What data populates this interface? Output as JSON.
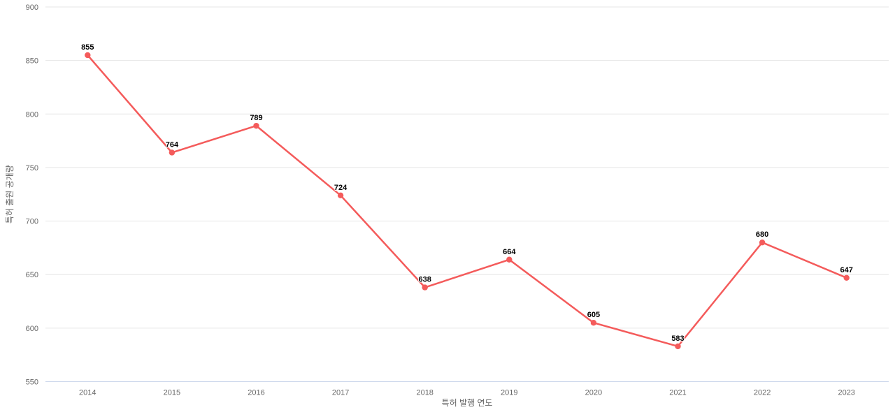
{
  "chart_data": {
    "type": "line",
    "title": "",
    "categories": [
      "2014",
      "2015",
      "2016",
      "2017",
      "2018",
      "2019",
      "2020",
      "2021",
      "2022",
      "2023"
    ],
    "values": [
      855,
      764,
      789,
      724,
      638,
      664,
      605,
      583,
      680,
      647
    ],
    "xlabel": "특허 발행 연도",
    "ylabel": "특허 출원 공개량",
    "ylim": [
      550,
      900
    ],
    "yticks": [
      550,
      600,
      650,
      700,
      750,
      800,
      850,
      900
    ],
    "grid": true,
    "legend": false,
    "data_labels_visible": true,
    "colors": {
      "line": "#f45b5b",
      "marker": "#f45b5b",
      "grid": "#e6e6e6",
      "x_axis_line": "#ccd6eb",
      "tick_label": "#666666",
      "axis_title": "#666666",
      "data_label": "#000000",
      "background": "#ffffff"
    }
  }
}
